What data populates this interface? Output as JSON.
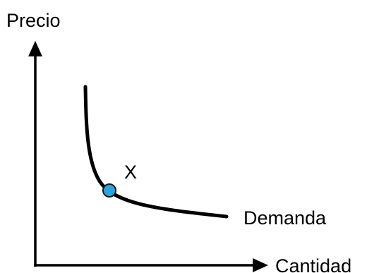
{
  "labels": {
    "y_axis": "Precio",
    "x_axis": "Cantidad",
    "curve": "Demanda",
    "point": "X"
  },
  "colors": {
    "line": "#000000",
    "point_fill": "#2ea3dc",
    "point_stroke": "#1a1a1a",
    "background": "#ffffff"
  }
}
